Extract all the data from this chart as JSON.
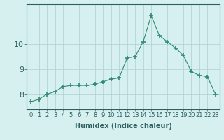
{
  "x": [
    0,
    1,
    2,
    3,
    4,
    5,
    6,
    7,
    8,
    9,
    10,
    11,
    12,
    13,
    14,
    15,
    16,
    17,
    18,
    19,
    20,
    21,
    22,
    23
  ],
  "y": [
    7.7,
    7.8,
    8.0,
    8.1,
    8.3,
    8.35,
    8.35,
    8.35,
    8.4,
    8.5,
    8.6,
    8.65,
    9.45,
    9.5,
    10.1,
    11.15,
    10.35,
    10.1,
    9.85,
    9.55,
    8.9,
    8.75,
    8.7,
    8.0
  ],
  "line_color": "#2e8b74",
  "marker": "+",
  "marker_size": 4,
  "marker_lw": 1.2,
  "bg_color": "#d6efef",
  "grid_color": "#b0cece",
  "axis_color": "#2e6060",
  "xlabel": "Humidex (Indice chaleur)",
  "xlim": [
    -0.5,
    23.5
  ],
  "ylim": [
    7.4,
    11.6
  ],
  "yticks": [
    8,
    9,
    10
  ],
  "xticks": [
    0,
    1,
    2,
    3,
    4,
    5,
    6,
    7,
    8,
    9,
    10,
    11,
    12,
    13,
    14,
    15,
    16,
    17,
    18,
    19,
    20,
    21,
    22,
    23
  ],
  "xlabel_fontsize": 7,
  "tick_fontsize": 6,
  "ytick_fontsize": 8
}
